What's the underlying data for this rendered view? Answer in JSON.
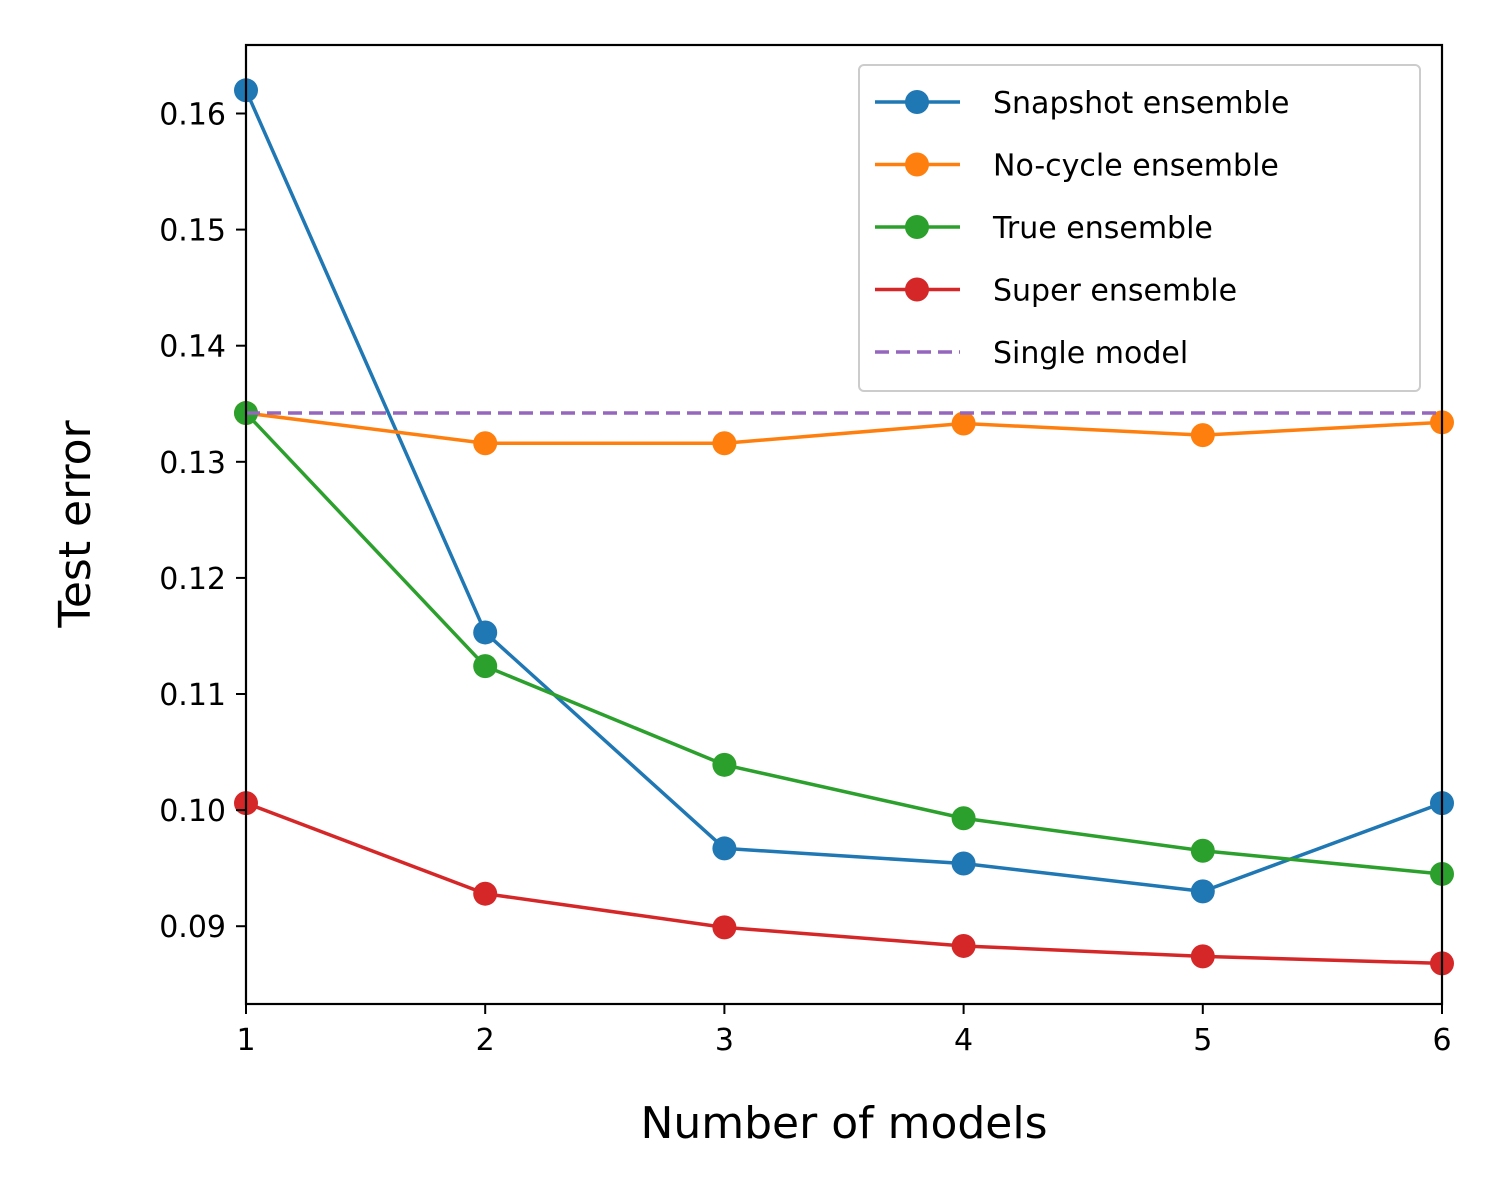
{
  "chart_data": {
    "type": "line",
    "title": "",
    "xlabel": "Number of models",
    "ylabel": "Test error",
    "x": [
      1,
      2,
      3,
      4,
      5,
      6
    ],
    "xlim": [
      1,
      6
    ],
    "ylim": [
      0.0833,
      0.1659
    ],
    "xticks": [
      "1",
      "2",
      "3",
      "4",
      "5",
      "6"
    ],
    "yticks": [
      "0.09",
      "0.10",
      "0.11",
      "0.12",
      "0.13",
      "0.14",
      "0.15",
      "0.16"
    ],
    "grid": false,
    "legend_position": "top-right",
    "series": [
      {
        "name": "Snapshot ensemble",
        "color": "#1f77b4",
        "style": "solid-marker",
        "values": [
          0.162,
          0.1153,
          0.0967,
          0.0954,
          0.093,
          0.1006
        ]
      },
      {
        "name": "No-cycle ensemble",
        "color": "#ff7f0e",
        "style": "solid-marker",
        "values": [
          0.1342,
          0.1316,
          0.1316,
          0.1333,
          0.1323,
          0.1334
        ]
      },
      {
        "name": "True ensemble",
        "color": "#2ca02c",
        "style": "solid-marker",
        "values": [
          0.1342,
          0.1124,
          0.1039,
          0.0993,
          0.0965,
          0.0945
        ]
      },
      {
        "name": "Super ensemble",
        "color": "#d62728",
        "style": "solid-marker",
        "values": [
          0.1006,
          0.0928,
          0.0899,
          0.0883,
          0.0874,
          0.0868
        ]
      },
      {
        "name": "Single model",
        "color": "#9467bd",
        "style": "dashed",
        "values": [
          0.1342,
          0.1342,
          0.1342,
          0.1342,
          0.1342,
          0.1342
        ]
      }
    ]
  }
}
